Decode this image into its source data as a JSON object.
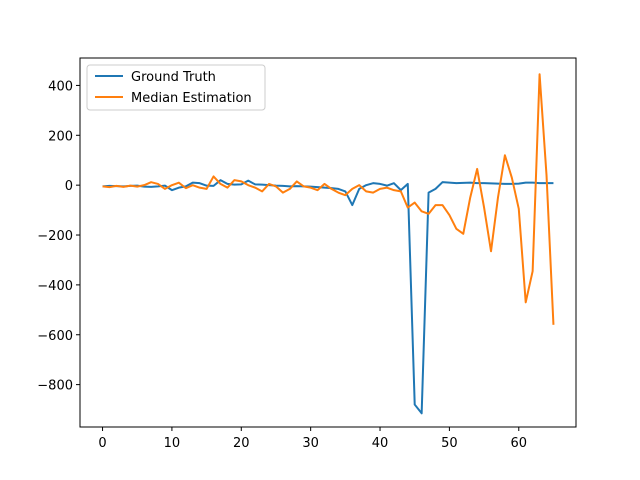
{
  "chart_data": {
    "type": "line",
    "title": "",
    "xlabel": "",
    "ylabel": "",
    "xlim": [
      -3.25,
      68.25
    ],
    "ylim": [
      -970,
      510
    ],
    "xticks": [
      0,
      10,
      20,
      30,
      40,
      50,
      60
    ],
    "yticks": [
      -800,
      -600,
      -400,
      -200,
      0,
      200,
      400
    ],
    "ytick_labels": [
      "−800",
      "−600",
      "−400",
      "−200",
      "0",
      "200",
      "400"
    ],
    "grid": false,
    "legend_position": "top-left",
    "series": [
      {
        "name": "Ground Truth",
        "color": "#1f77b4",
        "x": [
          0,
          1,
          2,
          3,
          4,
          5,
          6,
          7,
          8,
          9,
          10,
          11,
          12,
          13,
          14,
          15,
          16,
          17,
          18,
          19,
          20,
          21,
          22,
          23,
          24,
          25,
          26,
          27,
          28,
          29,
          30,
          31,
          32,
          33,
          34,
          35,
          36,
          37,
          38,
          39,
          40,
          41,
          42,
          43,
          44,
          45,
          46,
          47,
          48,
          49,
          50,
          51,
          52,
          53,
          54,
          55,
          56,
          57,
          58,
          59,
          60,
          61,
          62,
          63,
          64,
          65
        ],
        "y": [
          -5,
          -3,
          -4,
          -5,
          -3,
          -2,
          -6,
          -7,
          -5,
          -2,
          -20,
          -10,
          -5,
          10,
          8,
          -2,
          -3,
          20,
          5,
          2,
          3,
          18,
          3,
          2,
          0,
          -2,
          -3,
          -5,
          -4,
          -5,
          -6,
          -8,
          -10,
          -12,
          -15,
          -25,
          -80,
          -15,
          0,
          8,
          5,
          -2,
          8,
          -20,
          5,
          -880,
          -915,
          -30,
          -15,
          12,
          10,
          8,
          9,
          10,
          8,
          8,
          7,
          6,
          5,
          5,
          6,
          10,
          10,
          8,
          8,
          8
        ]
      },
      {
        "name": "Median Estimation",
        "color": "#ff7f0e",
        "x": [
          0,
          1,
          2,
          3,
          4,
          5,
          6,
          7,
          8,
          9,
          10,
          11,
          12,
          13,
          14,
          15,
          16,
          17,
          18,
          19,
          20,
          21,
          22,
          23,
          24,
          25,
          26,
          27,
          28,
          29,
          30,
          31,
          32,
          33,
          34,
          35,
          36,
          37,
          38,
          39,
          40,
          41,
          42,
          43,
          44,
          45,
          46,
          47,
          48,
          49,
          50,
          51,
          52,
          53,
          54,
          55,
          56,
          57,
          58,
          59,
          60,
          61,
          62,
          63,
          64,
          65
        ],
        "y": [
          -5,
          -8,
          -3,
          -7,
          -2,
          -6,
          0,
          12,
          5,
          -15,
          0,
          10,
          -12,
          0,
          -10,
          -15,
          35,
          5,
          -10,
          20,
          15,
          0,
          -10,
          -25,
          5,
          -5,
          -30,
          -15,
          15,
          -5,
          -10,
          -20,
          5,
          -15,
          -30,
          -40,
          -15,
          0,
          -25,
          -30,
          -15,
          -10,
          -20,
          -25,
          -90,
          -70,
          -105,
          -115,
          -80,
          -80,
          -120,
          -175,
          -195,
          -50,
          65,
          -90,
          -265,
          -50,
          120,
          30,
          -95,
          -470,
          -345,
          445,
          40,
          -560
        ]
      }
    ]
  }
}
